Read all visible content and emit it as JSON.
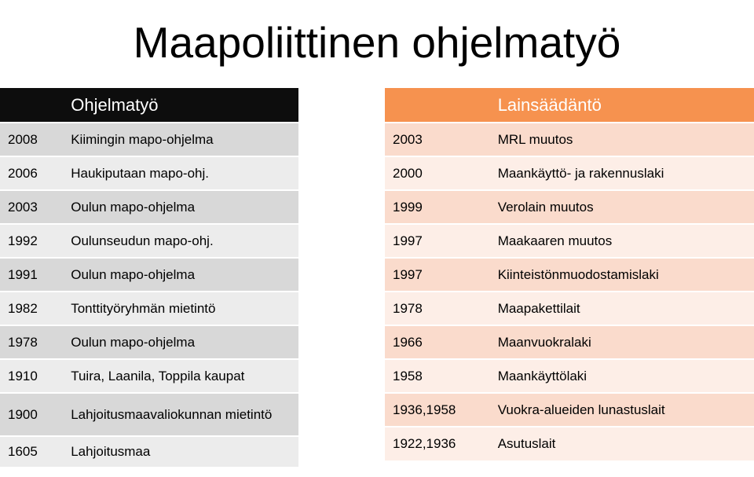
{
  "title": "Maapoliittinen ohjelmatyö",
  "left_table": {
    "header": "Ohjelmatyö",
    "rows": [
      {
        "year": "2008",
        "text": "Kiimingin mapo-ohjelma"
      },
      {
        "year": "2006",
        "text": "Haukiputaan mapo-ohj."
      },
      {
        "year": "2003",
        "text": "Oulun mapo-ohjelma"
      },
      {
        "year": "1992",
        "text": "Oulunseudun mapo-ohj."
      },
      {
        "year": "1991",
        "text": "Oulun mapo-ohjelma"
      },
      {
        "year": "1982",
        "text": "Tonttityöryhmän mietintö"
      },
      {
        "year": "1978",
        "text": "Oulun mapo-ohjelma"
      },
      {
        "year": "1910",
        "text": "Tuira, Laanila, Toppila kaupat"
      },
      {
        "year": "1900",
        "text": "Lahjoitusmaavaliokunnan mietintö"
      },
      {
        "year": "1605",
        "text": "Lahjoitusmaa"
      }
    ]
  },
  "right_table": {
    "header": "Lainsäädäntö",
    "rows": [
      {
        "year": "2003",
        "text": "MRL muutos"
      },
      {
        "year": "2000",
        "text": "Maankäyttö- ja rakennuslaki"
      },
      {
        "year": "1999",
        "text": "Verolain muutos"
      },
      {
        "year": "1997",
        "text": "Maakaaren muutos"
      },
      {
        "year": "1997",
        "text": "Kiinteistönmuodostamislaki"
      },
      {
        "year": "1978",
        "text": "Maapakettilait"
      },
      {
        "year": "1966",
        "text": "Maanvuokralaki"
      },
      {
        "year": "1958",
        "text": "Maankäyttölaki"
      },
      {
        "year": "1936,1958",
        "text": "Vuokra-alueiden lunastuslait"
      },
      {
        "year": "1922,1936",
        "text": "Asutuslait"
      }
    ]
  }
}
